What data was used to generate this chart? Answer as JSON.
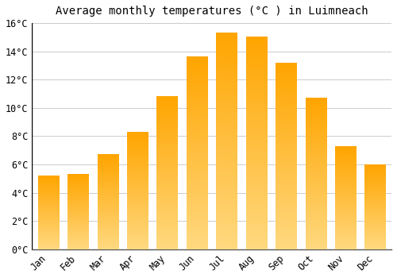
{
  "title": "Average monthly temperatures (°C ) in Luimneach",
  "months": [
    "Jan",
    "Feb",
    "Mar",
    "Apr",
    "May",
    "Jun",
    "Jul",
    "Aug",
    "Sep",
    "Oct",
    "Nov",
    "Dec"
  ],
  "values": [
    5.2,
    5.3,
    6.7,
    8.3,
    10.8,
    13.6,
    15.3,
    15.0,
    13.2,
    10.7,
    7.3,
    6.0
  ],
  "bar_color_top": "#FFA500",
  "bar_color_bottom": "#FFD980",
  "background_color": "#FFFFFF",
  "grid_color": "#CCCCCC",
  "ylim": [
    0,
    16
  ],
  "yticks": [
    0,
    2,
    4,
    6,
    8,
    10,
    12,
    14,
    16
  ],
  "title_fontsize": 10,
  "tick_fontsize": 8.5,
  "font_family": "monospace",
  "bar_width": 0.7
}
